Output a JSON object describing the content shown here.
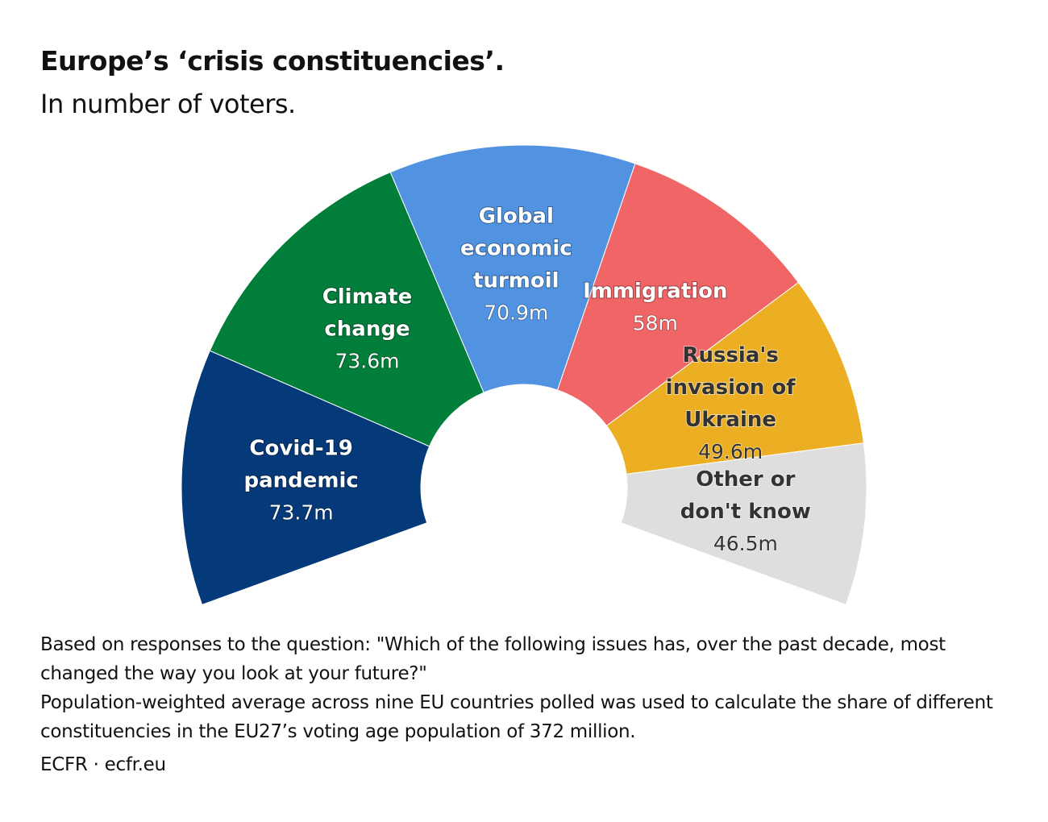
{
  "title": "Europe’s ‘crisis constituencies’.",
  "subtitle": "In number of voters.",
  "chart_data": {
    "type": "pie",
    "variant": "semicircle-donut",
    "unit": "m",
    "segments": [
      {
        "label": [
          "Covid-19",
          "pandemic"
        ],
        "value": 73.7,
        "value_label": "73.7m",
        "color": "#043a7a",
        "text_color": "#ffffff"
      },
      {
        "label": [
          "Climate",
          "change"
        ],
        "value": 73.6,
        "value_label": "73.6m",
        "color": "#007e3a",
        "text_color": "#ffffff"
      },
      {
        "label": [
          "Global",
          "economic",
          "turmoil"
        ],
        "value": 70.9,
        "value_label": "70.9m",
        "color": "#5193e0",
        "text_color": "#ffffff"
      },
      {
        "label": [
          "Immigration"
        ],
        "value": 58,
        "value_label": "58m",
        "color": "#f06566",
        "text_color": "#ffffff"
      },
      {
        "label": [
          "Russia's",
          "invasion of",
          "Ukraine"
        ],
        "value": 49.6,
        "value_label": "49.6m",
        "color": "#ecae22",
        "text_color": "#333333"
      },
      {
        "label": [
          "Other or",
          "don't know"
        ],
        "value": 46.5,
        "value_label": "46.5m",
        "color": "#dedede",
        "text_color": "#333333"
      }
    ]
  },
  "notes": [
    "Based on responses to the question: \"Which of the following issues has, over the past decade, most changed the way you look at your future?\"",
    "Population-weighted average across nine EU countries polled was used to calculate the share of different constituencies in the EU27’s voting age population of 372 million."
  ],
  "source": "ECFR · ecfr.eu"
}
